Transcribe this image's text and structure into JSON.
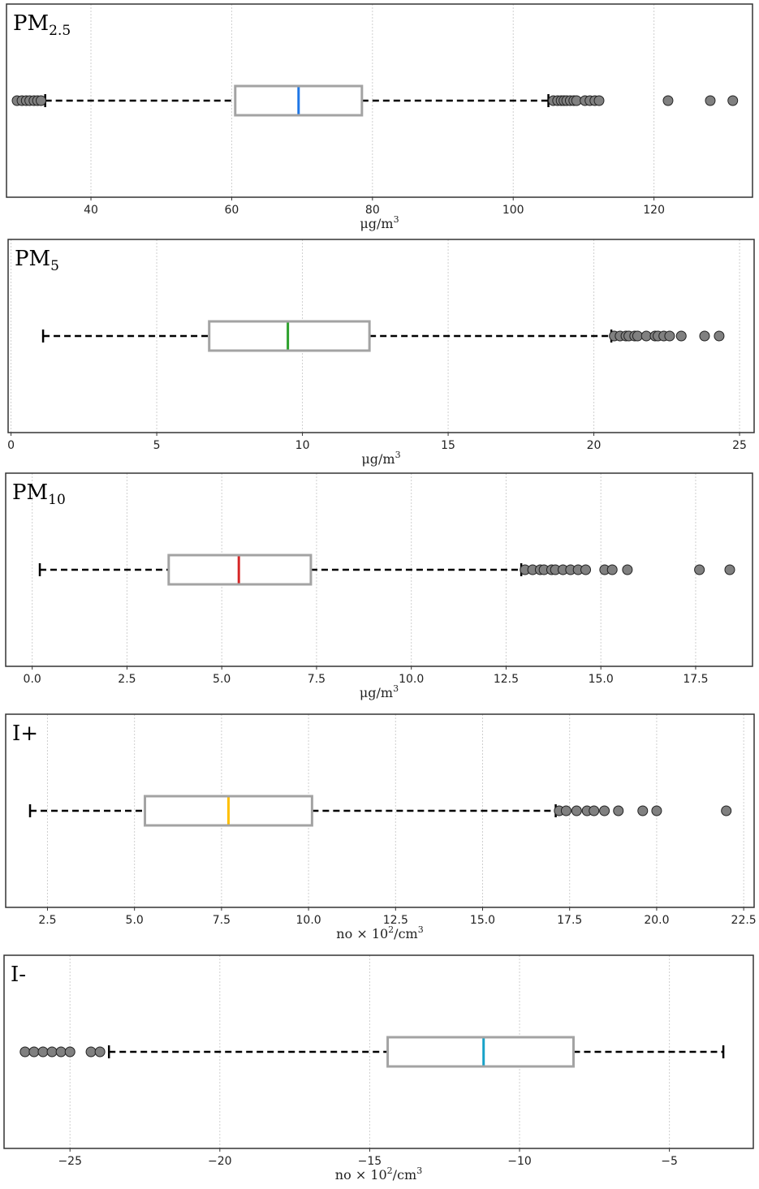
{
  "chart_data": [
    {
      "type": "boxplot",
      "title_main": "PM",
      "title_sub": "2.5",
      "title_sup": "",
      "xlabel": "μg/m",
      "xlabel_sup": "3",
      "xlim": [
        28,
        134
      ],
      "ticks": [
        40,
        60,
        80,
        100,
        120
      ],
      "tick_labels": [
        "40",
        "60",
        "80",
        "100",
        "120"
      ],
      "whisker_low": 33.5,
      "q1": 60.5,
      "median": 69.5,
      "q3": 78.5,
      "whisker_high": 105,
      "median_color": "#1f77e6",
      "fliers": [
        29.5,
        30.2,
        30.8,
        31.3,
        31.9,
        32.4,
        32.9,
        105.7,
        106.3,
        106.8,
        107.2,
        107.6,
        108.1,
        108.6,
        109,
        110.2,
        110.9,
        111.6,
        112.2,
        122,
        128,
        131.2
      ],
      "grid": true
    },
    {
      "type": "boxplot",
      "title_main": "PM",
      "title_sub": "5",
      "title_sup": "",
      "xlabel": "μg/m",
      "xlabel_sup": "3",
      "xlim": [
        -0.1,
        25.5
      ],
      "ticks": [
        0,
        5,
        10,
        15,
        20,
        25
      ],
      "tick_labels": [
        "0",
        "5",
        "10",
        "15",
        "20",
        "25"
      ],
      "whisker_low": 1.1,
      "q1": 6.8,
      "median": 9.5,
      "q3": 12.3,
      "whisker_high": 20.6,
      "median_color": "#2ca02c",
      "fliers": [
        20.7,
        20.9,
        21.1,
        21.2,
        21.4,
        21.5,
        21.8,
        22.1,
        22.2,
        22.4,
        22.6,
        23,
        23.8,
        24.3
      ],
      "grid": true
    },
    {
      "type": "boxplot",
      "title_main": "PM",
      "title_sub": "10",
      "title_sup": "",
      "xlabel": "μg/m",
      "xlabel_sup": "3",
      "xlim": [
        -0.7,
        19
      ],
      "ticks": [
        0,
        2.5,
        5,
        7.5,
        10,
        12.5,
        15,
        17.5
      ],
      "tick_labels": [
        "0.0",
        "2.5",
        "5.0",
        "7.5",
        "10.0",
        "12.5",
        "15.0",
        "17.5"
      ],
      "whisker_low": 0.2,
      "q1": 3.6,
      "median": 5.45,
      "q3": 7.35,
      "whisker_high": 12.9,
      "median_color": "#d62728",
      "fliers": [
        13,
        13.2,
        13.4,
        13.5,
        13.7,
        13.8,
        14,
        14.2,
        14.4,
        14.6,
        15.1,
        15.3,
        15.7,
        17.6,
        18.4
      ],
      "grid": true
    },
    {
      "type": "boxplot",
      "title_main": "I+",
      "title_sub": "",
      "title_sup": "",
      "xlabel": "no × 10",
      "xlabel_sup": "2",
      "xlabel_tail": "/cm",
      "xlabel_sup2": "3",
      "xlim": [
        1.3,
        22.8
      ],
      "ticks": [
        2.5,
        5,
        7.5,
        10,
        12.5,
        15,
        17.5,
        20,
        22.5
      ],
      "tick_labels": [
        "2.5",
        "5.0",
        "7.5",
        "10.0",
        "12.5",
        "15.0",
        "17.5",
        "20.0",
        "22.5"
      ],
      "whisker_low": 2,
      "q1": 5.3,
      "median": 7.7,
      "q3": 10.1,
      "whisker_high": 17.1,
      "median_color": "#ffbf00",
      "fliers": [
        17.2,
        17.4,
        17.7,
        18,
        18.2,
        18.5,
        18.9,
        19.6,
        20,
        22
      ],
      "grid": true
    },
    {
      "type": "boxplot",
      "title_main": "I-",
      "title_sub": "",
      "title_sup": "",
      "xlabel": "no × 10",
      "xlabel_sup": "2",
      "xlabel_tail": "/cm",
      "xlabel_sup2": "3",
      "xlim": [
        -27.2,
        -2.2
      ],
      "ticks": [
        -25,
        -20,
        -15,
        -10,
        -5
      ],
      "tick_labels": [
        "−25",
        "−20",
        "−15",
        "−10",
        "−5"
      ],
      "whisker_low": -23.7,
      "q1": -14.4,
      "median": -11.2,
      "q3": -8.2,
      "whisker_high": -3.2,
      "median_color": "#17a2c8",
      "fliers": [
        -26.5,
        -26.2,
        -25.9,
        -25.6,
        -25.3,
        -25,
        -24.3,
        -24
      ],
      "grid": true
    }
  ]
}
